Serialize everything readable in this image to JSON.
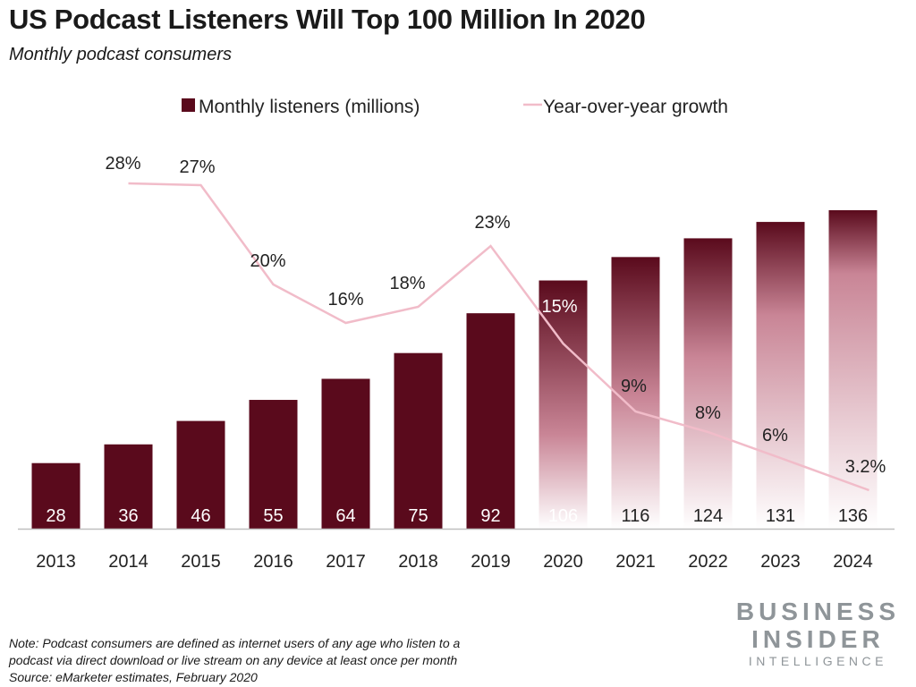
{
  "header": {
    "title": "US Podcast Listeners Will Top 100 Million In 2020",
    "subtitle": "Monthly podcast consumers"
  },
  "footer": {
    "note_line1": "Note: Podcast consumers are defined as internet users of any age who listen to a",
    "note_line2": "podcast via direct download or live stream on any device at least once per month",
    "source": "Source: eMarketer estimates, February 2020"
  },
  "brand": {
    "line1": "BUSINESS",
    "line2": "INSIDER",
    "line3": "INTELLIGENCE"
  },
  "colors": {
    "bar": "#5a0a1c",
    "line": "#f1bcc9",
    "axis": "#bfbfbf"
  },
  "chart_data": {
    "type": "bar",
    "title": "US Podcast Listeners Will Top 100 Million In 2020",
    "subtitle": "Monthly podcast consumers",
    "categories": [
      "2013",
      "2014",
      "2015",
      "2016",
      "2017",
      "2018",
      "2019",
      "2020",
      "2021",
      "2022",
      "2023",
      "2024"
    ],
    "series": [
      {
        "name": "Monthly listeners (millions)",
        "type": "bar",
        "values": [
          28,
          36,
          46,
          55,
          64,
          75,
          92,
          106,
          116,
          124,
          131,
          136
        ],
        "labels": [
          "28",
          "36",
          "46",
          "55",
          "64",
          "75",
          "92",
          "106",
          "116",
          "124",
          "131",
          "136"
        ],
        "projected_from": "2020"
      },
      {
        "name": "Year-over-year growth",
        "type": "line",
        "values": [
          null,
          28,
          27,
          20,
          16,
          18,
          23,
          15,
          9,
          8,
          6,
          3.2
        ],
        "labels": [
          "",
          "28%",
          "27%",
          "20%",
          "16%",
          "18%",
          "23%",
          "15%",
          "9%",
          "8%",
          "6%",
          "3.2%"
        ]
      }
    ],
    "ylim_bars": [
      0,
      145
    ],
    "ylim_line": [
      0,
      60
    ],
    "legend_position": "top-center",
    "grid": false
  }
}
